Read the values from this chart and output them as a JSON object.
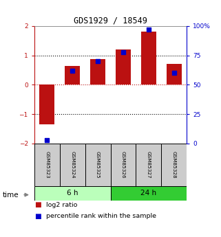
{
  "title": "GDS1929 / 18549",
  "samples": [
    "GSM85323",
    "GSM85324",
    "GSM85325",
    "GSM85326",
    "GSM85327",
    "GSM85328"
  ],
  "log2_ratio": [
    -1.35,
    0.65,
    0.88,
    1.2,
    1.8,
    0.72
  ],
  "percentile_rank": [
    3,
    62,
    70,
    78,
    97,
    60
  ],
  "groups": [
    {
      "label": "6 h",
      "indices": [
        0,
        1,
        2
      ],
      "color": "#bbffbb"
    },
    {
      "label": "24 h",
      "indices": [
        3,
        4,
        5
      ],
      "color": "#33cc33"
    }
  ],
  "bar_color": "#bb1111",
  "scatter_color": "#0000cc",
  "ylim_left": [
    -2,
    2
  ],
  "ylim_right": [
    0,
    100
  ],
  "yticks_left": [
    -2,
    -1,
    0,
    1,
    2
  ],
  "yticks_right": [
    0,
    25,
    50,
    75,
    100
  ],
  "ytick_labels_right": [
    "0",
    "25",
    "50",
    "75",
    "100%"
  ],
  "hlines_black_dotted": [
    -1,
    1
  ],
  "hline_red_dotted": 0,
  "bg_color": "#ffffff",
  "sample_box_color": "#cccccc",
  "legend_items": [
    {
      "color": "#bb1111",
      "label": "log2 ratio"
    },
    {
      "color": "#0000cc",
      "label": "percentile rank within the sample"
    }
  ]
}
